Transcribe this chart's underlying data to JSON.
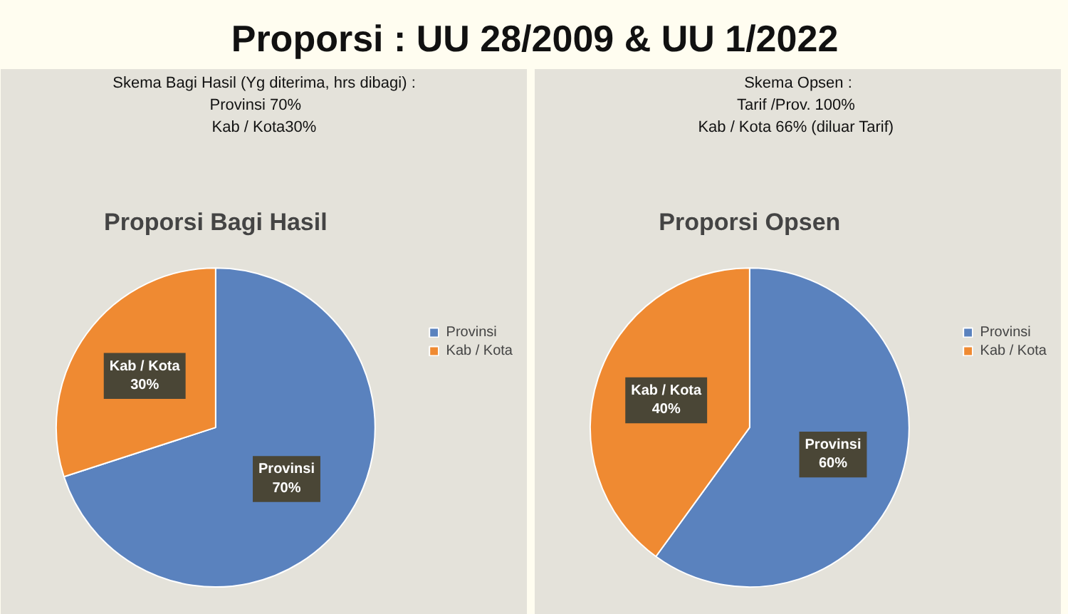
{
  "chart_data": [
    {
      "type": "other",
      "title": "Proporsi : UU 28/2009 & UU 1/2022"
    },
    {
      "type": "pie",
      "title": "Proporsi Bagi Hasil",
      "annotations": [
        "Skema Bagi Hasil (Yg diterima, hrs dibagi) :",
        "Provinsi     70%",
        "Kab / Kota30%"
      ],
      "categories": [
        "Provinsi",
        "Kab / Kota"
      ],
      "values": [
        70,
        30
      ],
      "value_labels": [
        "70%",
        "30%"
      ],
      "colors": [
        "#5a82be",
        "#ef8a32"
      ],
      "legend": "right"
    },
    {
      "type": "pie",
      "title": "Proporsi Opsen",
      "annotations": [
        "Skema Opsen :",
        "Tarif /Prov.  100%",
        "Kab / Kota  66% (diluar Tarif)"
      ],
      "categories": [
        "Provinsi",
        "Kab / Kota"
      ],
      "values": [
        60,
        40
      ],
      "value_labels": [
        "60%",
        "40%"
      ],
      "colors": [
        "#5a82be",
        "#ef8a32"
      ],
      "legend": "right"
    }
  ]
}
